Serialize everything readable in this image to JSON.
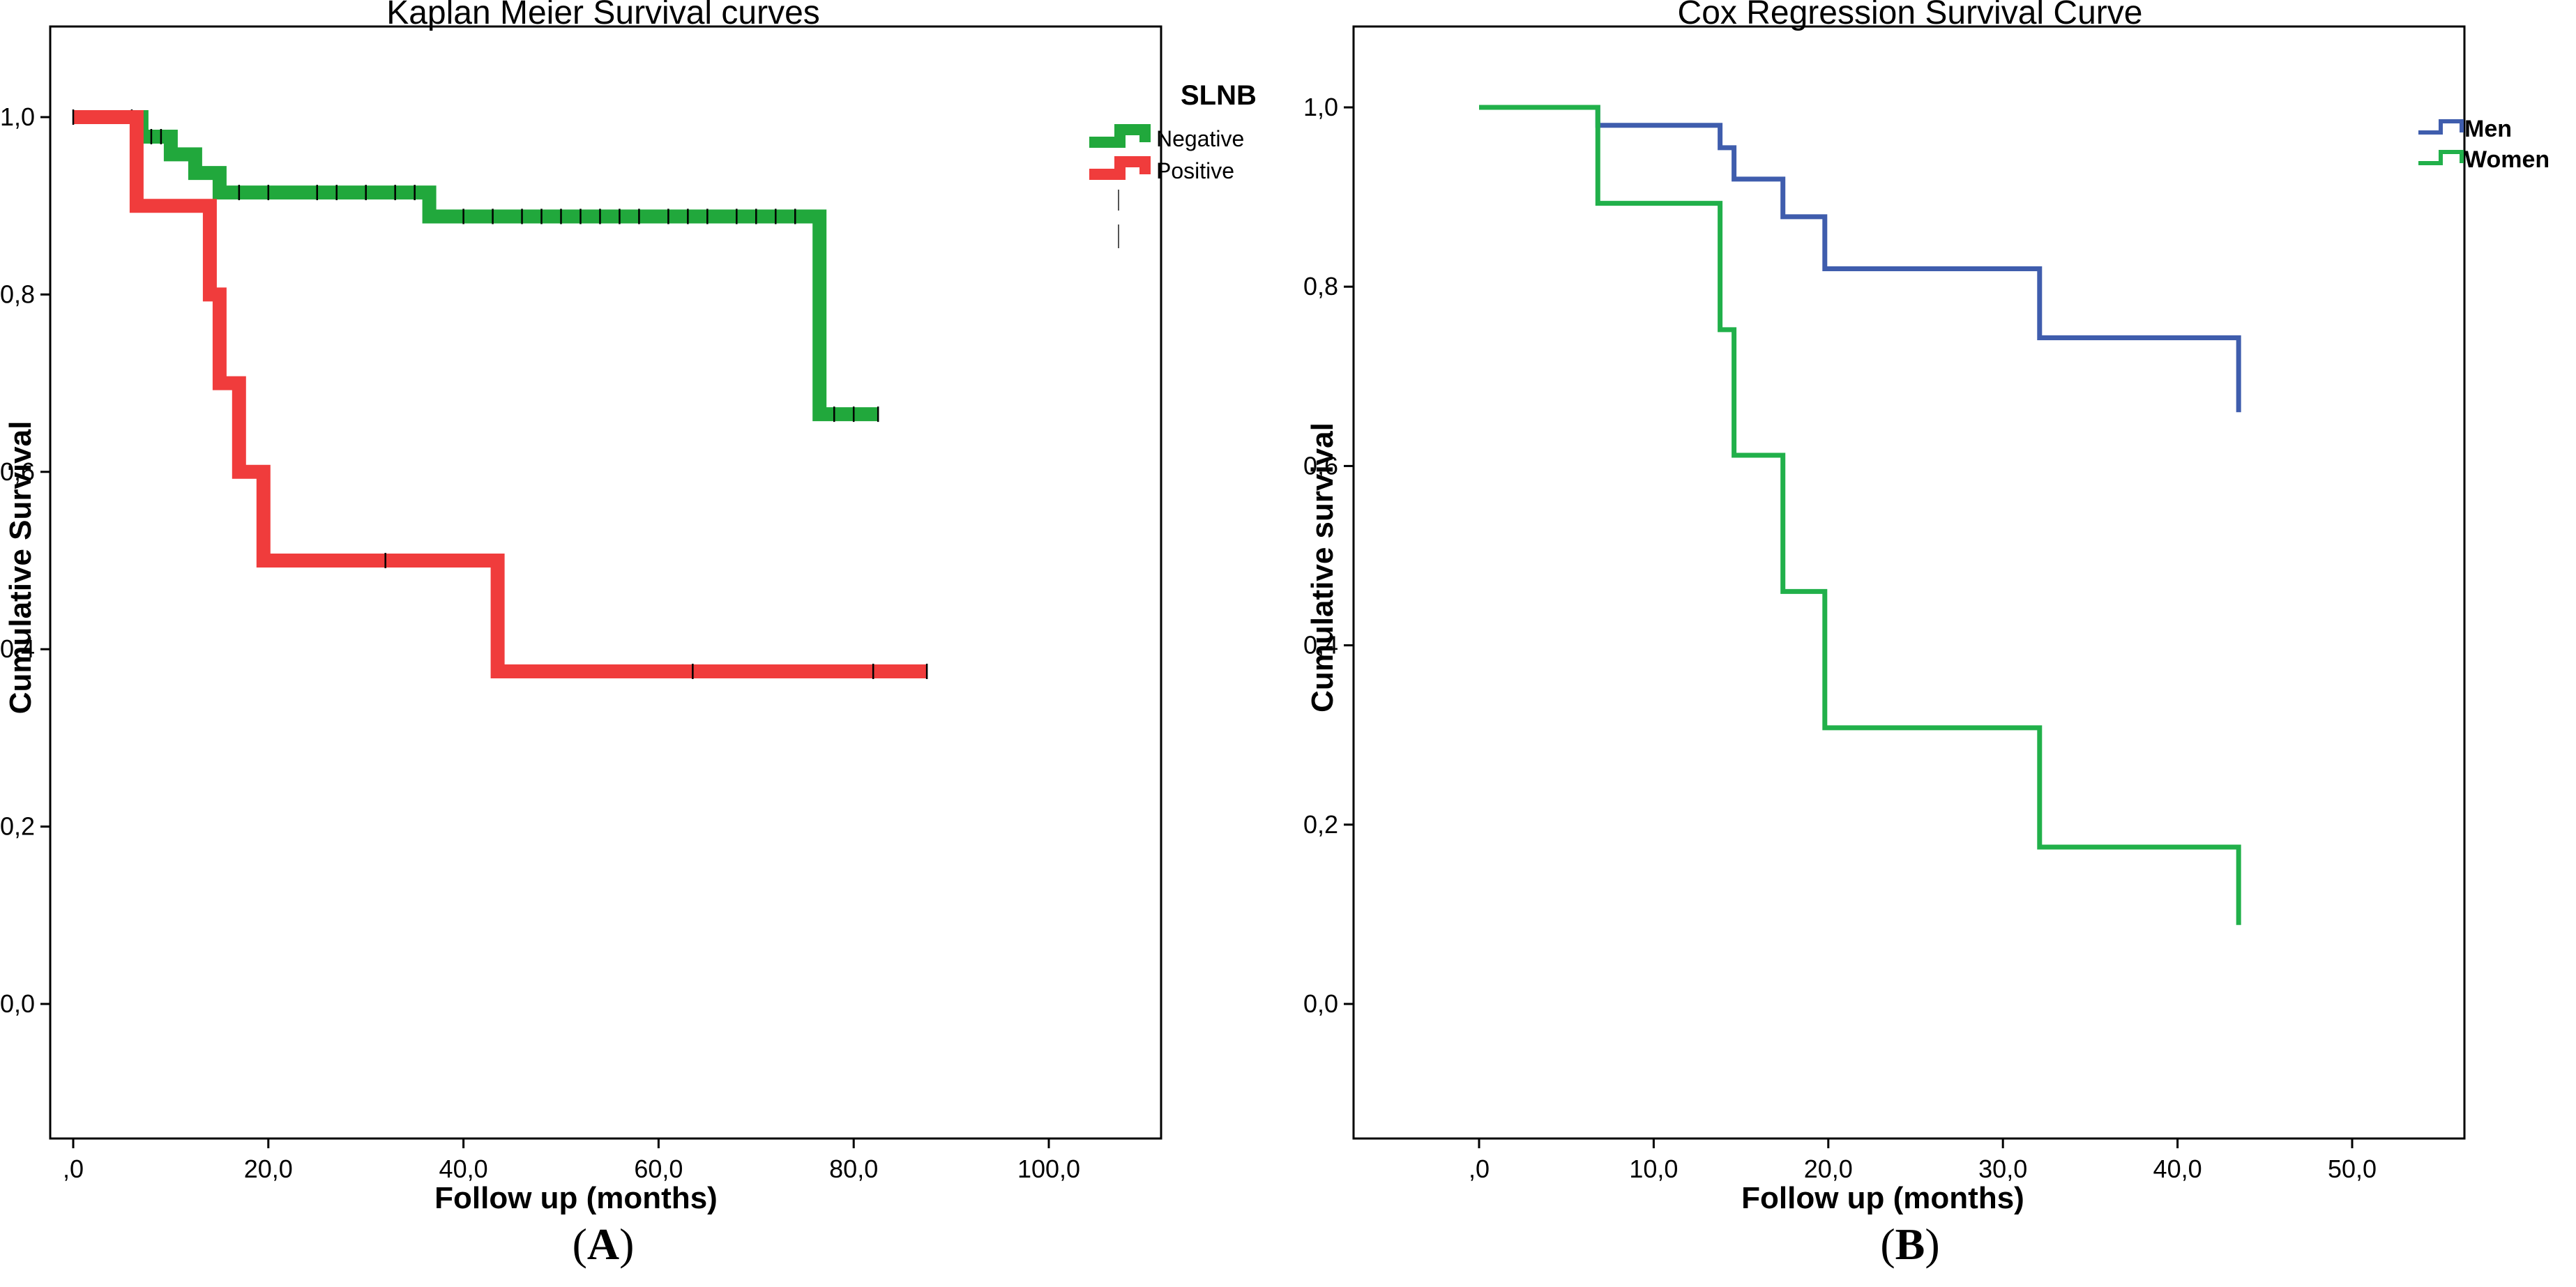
{
  "panels": [
    {
      "panel_letter": "A",
      "legend_title": "SLNB"
    },
    {
      "panel_letter": "B",
      "legend_title": ""
    }
  ],
  "chart_data": [
    {
      "type": "line",
      "step": true,
      "title": "Kaplan Meier Survival curves",
      "xlabel": "Follow up (months)",
      "ylabel": "Cumulative Survival",
      "xlim": [
        0,
        100
      ],
      "ylim": [
        0,
        1
      ],
      "x_ticks": [
        0,
        20,
        40,
        60,
        80,
        100
      ],
      "x_tick_labels": [
        ",0",
        "20,0",
        "40,0",
        "60,0",
        "80,0",
        "100,0"
      ],
      "y_ticks": [
        0,
        0.2,
        0.4,
        0.6,
        0.8,
        1.0
      ],
      "y_tick_labels": [
        "0,0",
        "0,2",
        "0,4",
        "0,6",
        "0,8",
        "1,0"
      ],
      "grid": false,
      "legend_title": "SLNB",
      "legend_position": "right",
      "series": [
        {
          "name": "Negative",
          "color": "#21a83c",
          "points": [
            [
              0,
              1.0
            ],
            [
              7,
              1.0
            ],
            [
              7,
              0.978
            ],
            [
              10,
              0.978
            ],
            [
              10,
              0.958
            ],
            [
              12.5,
              0.958
            ],
            [
              12.5,
              0.937
            ],
            [
              15,
              0.937
            ],
            [
              15,
              0.915
            ],
            [
              36.5,
              0.915
            ],
            [
              36.5,
              0.888
            ],
            [
              76.5,
              0.888
            ],
            [
              76.5,
              0.665
            ],
            [
              82.5,
              0.665
            ]
          ],
          "censored_x": [
            6,
            8,
            9,
            17,
            20,
            25,
            27,
            30,
            33,
            35,
            40,
            43,
            46,
            48,
            50,
            52,
            54,
            56,
            58,
            61,
            63,
            65,
            68,
            70,
            72,
            74,
            78,
            80,
            82.5
          ]
        },
        {
          "name": "Positive",
          "color": "#f03c3c",
          "points": [
            [
              0,
              1.0
            ],
            [
              6.5,
              1.0
            ],
            [
              6.5,
              0.9
            ],
            [
              14,
              0.9
            ],
            [
              14,
              0.8
            ],
            [
              15,
              0.8
            ],
            [
              15,
              0.7
            ],
            [
              17,
              0.7
            ],
            [
              17,
              0.6
            ],
            [
              19.5,
              0.6
            ],
            [
              19.5,
              0.5
            ],
            [
              43.5,
              0.5
            ],
            [
              43.5,
              0.375
            ],
            [
              87.5,
              0.375
            ]
          ],
          "censored_x": [
            0,
            32,
            63.5,
            82,
            87.5
          ]
        }
      ]
    },
    {
      "type": "line",
      "step": true,
      "title": "Cox Regression Survival Curve",
      "xlabel": "Follow up (months)",
      "ylabel": "Cumulative survival",
      "xlim": [
        0,
        50
      ],
      "ylim": [
        0,
        1
      ],
      "x_ticks": [
        0,
        10,
        20,
        30,
        40,
        50
      ],
      "x_tick_labels": [
        ",0",
        "10,0",
        "20,0",
        "30,0",
        "40,0",
        "50,0"
      ],
      "y_ticks": [
        0,
        0.2,
        0.4,
        0.6,
        0.8,
        1.0
      ],
      "y_tick_labels": [
        "0,0",
        "0,2",
        "0,4",
        "0,6",
        "0,8",
        "1,0"
      ],
      "grid": false,
      "legend_position": "top-right",
      "series": [
        {
          "name": "Men",
          "color": "#3f5dad",
          "points": [
            [
              0,
              1.0
            ],
            [
              6.8,
              1.0
            ],
            [
              6.8,
              0.98
            ],
            [
              13.8,
              0.98
            ],
            [
              13.8,
              0.955
            ],
            [
              14.6,
              0.955
            ],
            [
              14.6,
              0.92
            ],
            [
              17.4,
              0.92
            ],
            [
              17.4,
              0.878
            ],
            [
              19.8,
              0.878
            ],
            [
              19.8,
              0.82
            ],
            [
              32.1,
              0.82
            ],
            [
              32.1,
              0.743
            ],
            [
              43.5,
              0.743
            ],
            [
              43.5,
              0.66
            ]
          ]
        },
        {
          "name": "Women",
          "color": "#21b04a",
          "points": [
            [
              0,
              1.0
            ],
            [
              6.8,
              1.0
            ],
            [
              6.8,
              0.893
            ],
            [
              13.8,
              0.893
            ],
            [
              13.8,
              0.752
            ],
            [
              14.6,
              0.752
            ],
            [
              14.6,
              0.612
            ],
            [
              17.4,
              0.612
            ],
            [
              17.4,
              0.46
            ],
            [
              19.8,
              0.46
            ],
            [
              19.8,
              0.308
            ],
            [
              32.1,
              0.308
            ],
            [
              32.1,
              0.175
            ],
            [
              43.5,
              0.175
            ],
            [
              43.5,
              0.088
            ]
          ]
        }
      ]
    }
  ]
}
